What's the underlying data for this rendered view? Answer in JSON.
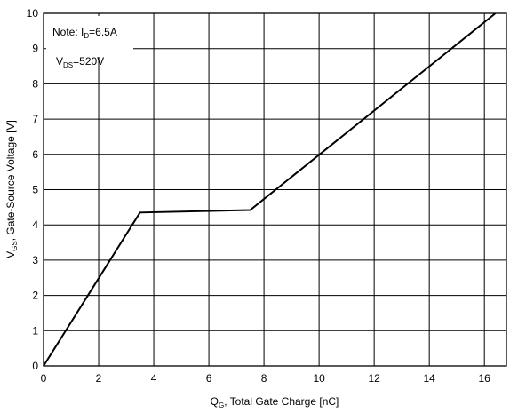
{
  "chart_data": {
    "type": "line",
    "xlabel_main": "Q",
    "xlabel_sub": "G",
    "xlabel_rest": ", Total Gate Charge [nC]",
    "ylabel_main": "V",
    "ylabel_sub": "GS",
    "ylabel_rest": ", Gate-Source Voltage [V]",
    "xlim": [
      0,
      16.8
    ],
    "ylim": [
      0,
      10
    ],
    "x_ticks": [
      0,
      2,
      4,
      6,
      8,
      10,
      12,
      14,
      16
    ],
    "y_ticks": [
      0,
      1,
      2,
      3,
      4,
      5,
      6,
      7,
      8,
      9,
      10
    ],
    "grid": true,
    "series": [
      {
        "x": [
          0,
          3.5,
          7.5,
          16.4
        ],
        "y": [
          0,
          4.35,
          4.42,
          10.0
        ],
        "color": "#000000"
      }
    ],
    "annotations": {
      "line1_main": "Note: I",
      "line1_sub": "D",
      "line1_rest": "=6.5A",
      "line2_main": "V",
      "line2_sub": "DS",
      "line2_rest": "=520V"
    }
  }
}
